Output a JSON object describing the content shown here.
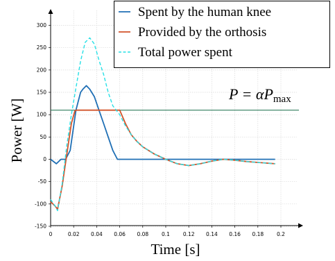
{
  "chart_data": {
    "type": "line",
    "xlabel": "Time [s]",
    "ylabel": "Power [W]",
    "xlim": [
      0,
      0.21
    ],
    "ylim": [
      -150,
      310
    ],
    "x_ticks": [
      "0",
      "0.02",
      "0.04",
      "0.06",
      "0.08",
      "0.1",
      "0.12",
      "0.14",
      "0.16",
      "0.18",
      "0.2"
    ],
    "y_ticks": [
      "300",
      "250",
      "200",
      "150",
      "100",
      "50",
      "0",
      "-50",
      "-100",
      "-150"
    ],
    "grid": true,
    "legend_position": "top-right",
    "colors": {
      "human": "#1f6fb5",
      "orthosis": "#d2532a",
      "total": "#27e0e6",
      "threshold": "#2f7d5c"
    },
    "annotation": {
      "prefix": "P = α",
      "symbol": "P",
      "subscript": "max",
      "value": 110
    },
    "series": [
      {
        "name": "Spent by the human knee",
        "x": [
          0,
          0.005,
          0.009,
          0.013,
          0.017,
          0.022,
          0.026,
          0.028,
          0.031,
          0.034,
          0.038,
          0.042,
          0.046,
          0.05,
          0.054,
          0.058,
          0.06,
          0.07,
          0.08,
          0.1,
          0.12,
          0.14,
          0.16,
          0.18,
          0.195
        ],
        "y": [
          0,
          -10,
          0,
          0,
          20,
          110,
          150,
          157,
          165,
          157,
          140,
          110,
          80,
          50,
          20,
          0,
          0,
          0,
          0,
          0,
          0,
          0,
          0,
          0,
          0
        ]
      },
      {
        "name": "Provided by the orthosis",
        "x": [
          0,
          0.004,
          0.006,
          0.01,
          0.014,
          0.018,
          0.021,
          0.022,
          0.03,
          0.04,
          0.05,
          0.06,
          0.065,
          0.07,
          0.075,
          0.08,
          0.09,
          0.1,
          0.11,
          0.12,
          0.13,
          0.14,
          0.15,
          0.16,
          0.17,
          0.18,
          0.195
        ],
        "y": [
          -95,
          -105,
          -112,
          -60,
          10,
          80,
          108,
          110,
          110,
          110,
          110,
          110,
          80,
          55,
          40,
          28,
          12,
          0,
          -10,
          -14,
          -10,
          -4,
          0,
          -2,
          -5,
          -7,
          -10
        ]
      },
      {
        "name": "Total power spent",
        "x": [
          0,
          0.004,
          0.006,
          0.01,
          0.014,
          0.018,
          0.022,
          0.026,
          0.03,
          0.034,
          0.038,
          0.042,
          0.046,
          0.05,
          0.054,
          0.06,
          0.065,
          0.07,
          0.075,
          0.08,
          0.09,
          0.1,
          0.11,
          0.12,
          0.13,
          0.14,
          0.15,
          0.16,
          0.17,
          0.18,
          0.195
        ],
        "y": [
          -90,
          -105,
          -115,
          -55,
          30,
          100,
          160,
          220,
          262,
          272,
          258,
          222,
          190,
          150,
          120,
          100,
          75,
          55,
          40,
          28,
          12,
          0,
          -10,
          -14,
          -10,
          -4,
          0,
          -2,
          -5,
          -7,
          -10
        ]
      }
    ]
  }
}
